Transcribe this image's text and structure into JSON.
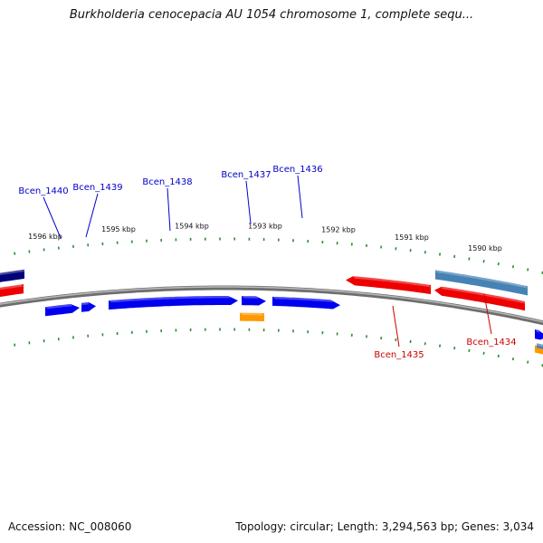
{
  "title": "Burkholderia cenocepacia AU 1054 chromosome 1, complete sequ...",
  "accession_label": "Accession: NC_008060",
  "summary_label": "Topology: circular; Length: 3,294,563 bp; Genes: 3,034",
  "colors": {
    "forward_gene": "#0000ee",
    "reverse_gene": "#ee0000",
    "other_feature": "#ff9900",
    "pseudo_feature": "#4682b4",
    "dark_feature": "#00007a",
    "backbone": "#888888",
    "tick": "#2e8b2e",
    "forward_label": "#0000cc",
    "reverse_label": "#cc0000"
  },
  "tick_labels": [
    {
      "kbp": 1596,
      "text": "1596 kbp"
    },
    {
      "kbp": 1595,
      "text": "1595 kbp"
    },
    {
      "kbp": 1594,
      "text": "1594 kbp"
    },
    {
      "kbp": 1593,
      "text": "1593 kbp"
    },
    {
      "kbp": 1592,
      "text": "1592 kbp"
    },
    {
      "kbp": 1591,
      "text": "1591 kbp"
    },
    {
      "kbp": 1590,
      "text": "1590 kbp"
    }
  ],
  "genes": [
    {
      "name": "Bcen_1440",
      "strand": "+",
      "type": "gene"
    },
    {
      "name": "Bcen_1439",
      "strand": "+",
      "type": "gene"
    },
    {
      "name": "Bcen_1438",
      "strand": "+",
      "type": "gene"
    },
    {
      "name": "Bcen_1437",
      "strand": "+",
      "type": "gene"
    },
    {
      "name": "Bcen_1436",
      "strand": "+",
      "type": "gene"
    },
    {
      "name": "Bcen_1435",
      "strand": "-",
      "type": "gene"
    },
    {
      "name": "Bcen_1434",
      "strand": "-",
      "type": "gene"
    }
  ]
}
